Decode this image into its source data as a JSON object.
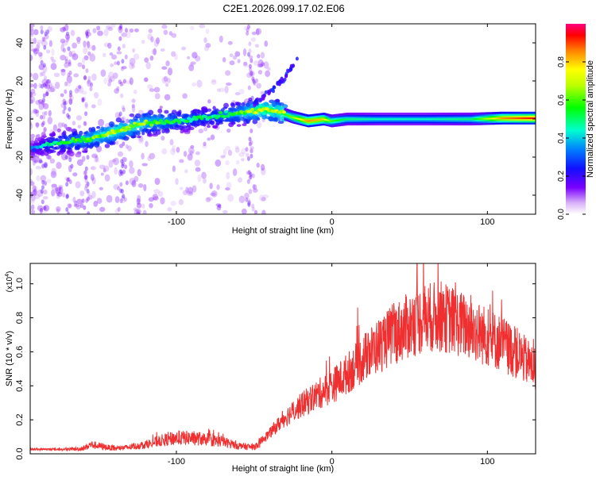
{
  "title": "C2E1.2026.099.17.02.E06",
  "chart_data": [
    {
      "type": "heatmap",
      "name": "spectrogram",
      "xlabel": "Height of straight line (km)",
      "ylabel": "Frequency (Hz)",
      "xlim": [
        -194,
        131
      ],
      "ylim": [
        -50,
        50
      ],
      "xticks": [
        -100,
        0,
        100
      ],
      "yticks": [
        -40,
        -20,
        0,
        20,
        40
      ],
      "colorbar": {
        "label": "Normalized spectral amplitude",
        "range": [
          0,
          1
        ],
        "ticks": [
          0.0,
          0.2,
          0.4,
          0.6,
          0.8
        ],
        "tick_labels": [
          "0.0",
          "0.2",
          "0.4",
          "0.6",
          "0.8"
        ]
      },
      "ridge": {
        "description": "dominant frequency vs height",
        "x": [
          -194,
          -180,
          -160,
          -140,
          -120,
          -100,
          -80,
          -60,
          -45,
          -35,
          -25,
          -15,
          -5,
          0,
          10,
          30,
          60,
          90,
          110,
          131
        ],
        "freq": [
          -16,
          -13,
          -11,
          -7,
          -2,
          -1,
          1,
          3,
          5,
          4,
          1,
          -1,
          0,
          -1,
          0,
          0,
          0,
          0,
          0.5,
          0.5
        ],
        "amplitude": [
          0.15,
          0.3,
          0.4,
          0.5,
          0.45,
          0.35,
          0.3,
          0.4,
          0.55,
          0.5,
          0.65,
          0.85,
          0.8,
          0.6,
          0.5,
          0.45,
          0.45,
          0.5,
          0.85,
          0.95
        ]
      },
      "branch": {
        "description": "secondary rising branch",
        "x": [
          -50,
          -40,
          -30,
          -22
        ],
        "freq": [
          8,
          14,
          22,
          32
        ]
      }
    },
    {
      "type": "line",
      "name": "snr",
      "xlabel": "Height of straight line (km)",
      "ylabel": "SNR (10 * v/v)",
      "y_multiplier": "(x10",
      "y_multiplier_exp": "4",
      "xlim": [
        -194,
        131
      ],
      "ylim": [
        0,
        1.12
      ],
      "xticks": [
        -100,
        0,
        100
      ],
      "yticks": [
        0.0,
        0.2,
        0.4,
        0.6,
        0.8,
        1.0
      ],
      "ytick_labels": [
        "0.0",
        "0.2",
        "0.4",
        "0.6",
        "0.8",
        "1.0"
      ],
      "series": [
        {
          "name": "SNR",
          "color": "#f03030",
          "envelope_x": [
            -194,
            -170,
            -160,
            -155,
            -140,
            -130,
            -120,
            -110,
            -100,
            -90,
            -80,
            -70,
            -60,
            -50,
            -40,
            -30,
            -20,
            -10,
            0,
            10,
            20,
            30,
            40,
            50,
            60,
            70,
            80,
            90,
            100,
            110,
            120,
            131
          ],
          "envelope_y": [
            0.03,
            0.03,
            0.04,
            0.07,
            0.04,
            0.05,
            0.07,
            0.1,
            0.12,
            0.12,
            0.11,
            0.09,
            0.06,
            0.05,
            0.14,
            0.25,
            0.33,
            0.4,
            0.46,
            0.55,
            0.65,
            0.74,
            0.82,
            0.88,
            0.93,
            0.94,
            0.9,
            0.85,
            0.8,
            0.75,
            0.68,
            0.58
          ]
        }
      ]
    }
  ]
}
